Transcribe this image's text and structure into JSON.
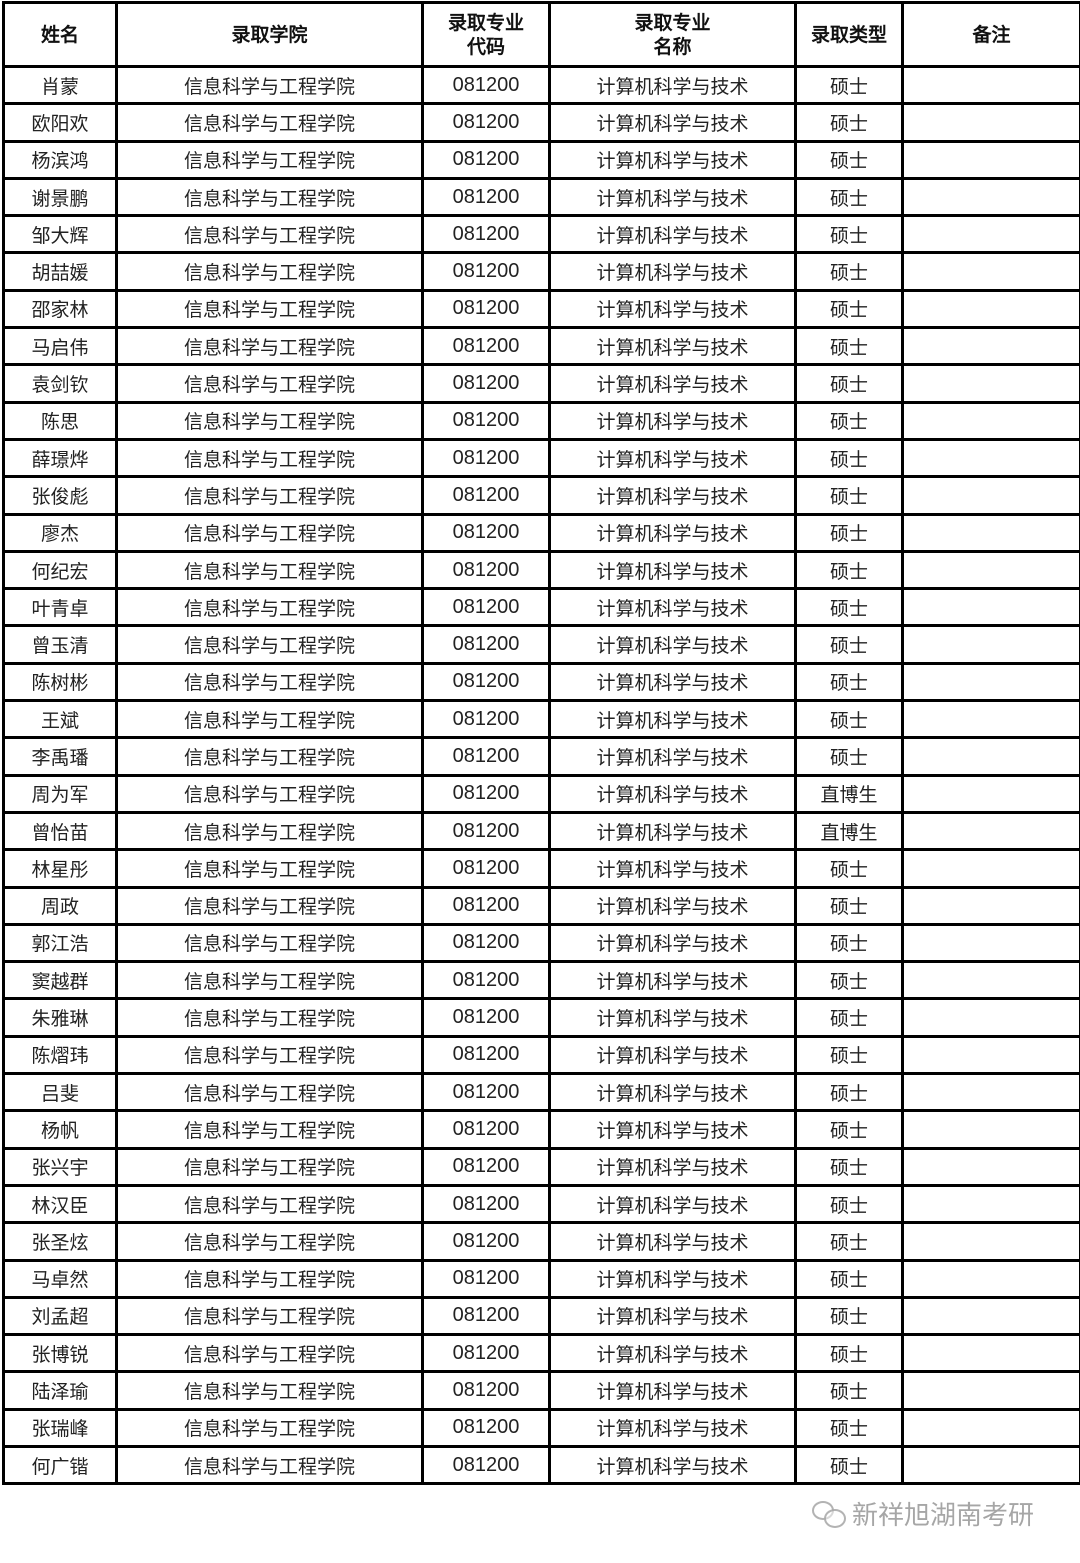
{
  "headers": [
    "姓名",
    "录取学院",
    "录取专业\n代码",
    "录取专业\n名称",
    "录取类型",
    "备注"
  ],
  "rows": [
    [
      "肖蒙",
      "信息科学与工程学院",
      "081200",
      "计算机科学与技术",
      "硕士",
      ""
    ],
    [
      "欧阳欢",
      "信息科学与工程学院",
      "081200",
      "计算机科学与技术",
      "硕士",
      ""
    ],
    [
      "杨滨鸿",
      "信息科学与工程学院",
      "081200",
      "计算机科学与技术",
      "硕士",
      ""
    ],
    [
      "谢景鹏",
      "信息科学与工程学院",
      "081200",
      "计算机科学与技术",
      "硕士",
      ""
    ],
    [
      "邹大辉",
      "信息科学与工程学院",
      "081200",
      "计算机科学与技术",
      "硕士",
      ""
    ],
    [
      "胡喆媛",
      "信息科学与工程学院",
      "081200",
      "计算机科学与技术",
      "硕士",
      ""
    ],
    [
      "邵家林",
      "信息科学与工程学院",
      "081200",
      "计算机科学与技术",
      "硕士",
      ""
    ],
    [
      "马启伟",
      "信息科学与工程学院",
      "081200",
      "计算机科学与技术",
      "硕士",
      ""
    ],
    [
      "袁剑钦",
      "信息科学与工程学院",
      "081200",
      "计算机科学与技术",
      "硕士",
      ""
    ],
    [
      "陈思",
      "信息科学与工程学院",
      "081200",
      "计算机科学与技术",
      "硕士",
      ""
    ],
    [
      "薛璟烨",
      "信息科学与工程学院",
      "081200",
      "计算机科学与技术",
      "硕士",
      ""
    ],
    [
      "张俊彪",
      "信息科学与工程学院",
      "081200",
      "计算机科学与技术",
      "硕士",
      ""
    ],
    [
      "廖杰",
      "信息科学与工程学院",
      "081200",
      "计算机科学与技术",
      "硕士",
      ""
    ],
    [
      "何纪宏",
      "信息科学与工程学院",
      "081200",
      "计算机科学与技术",
      "硕士",
      ""
    ],
    [
      "叶青卓",
      "信息科学与工程学院",
      "081200",
      "计算机科学与技术",
      "硕士",
      ""
    ],
    [
      "曾玉清",
      "信息科学与工程学院",
      "081200",
      "计算机科学与技术",
      "硕士",
      ""
    ],
    [
      "陈树彬",
      "信息科学与工程学院",
      "081200",
      "计算机科学与技术",
      "硕士",
      ""
    ],
    [
      "王斌",
      "信息科学与工程学院",
      "081200",
      "计算机科学与技术",
      "硕士",
      ""
    ],
    [
      "李禹璠",
      "信息科学与工程学院",
      "081200",
      "计算机科学与技术",
      "硕士",
      ""
    ],
    [
      "周为军",
      "信息科学与工程学院",
      "081200",
      "计算机科学与技术",
      "直博生",
      ""
    ],
    [
      "曾怡苗",
      "信息科学与工程学院",
      "081200",
      "计算机科学与技术",
      "直博生",
      ""
    ],
    [
      "林星彤",
      "信息科学与工程学院",
      "081200",
      "计算机科学与技术",
      "硕士",
      ""
    ],
    [
      "周政",
      "信息科学与工程学院",
      "081200",
      "计算机科学与技术",
      "硕士",
      ""
    ],
    [
      "郭江浩",
      "信息科学与工程学院",
      "081200",
      "计算机科学与技术",
      "硕士",
      ""
    ],
    [
      "窦越群",
      "信息科学与工程学院",
      "081200",
      "计算机科学与技术",
      "硕士",
      ""
    ],
    [
      "朱雅琳",
      "信息科学与工程学院",
      "081200",
      "计算机科学与技术",
      "硕士",
      ""
    ],
    [
      "陈熠玮",
      "信息科学与工程学院",
      "081200",
      "计算机科学与技术",
      "硕士",
      ""
    ],
    [
      "吕斐",
      "信息科学与工程学院",
      "081200",
      "计算机科学与技术",
      "硕士",
      ""
    ],
    [
      "杨帆",
      "信息科学与工程学院",
      "081200",
      "计算机科学与技术",
      "硕士",
      ""
    ],
    [
      "张兴宇",
      "信息科学与工程学院",
      "081200",
      "计算机科学与技术",
      "硕士",
      ""
    ],
    [
      "林汉臣",
      "信息科学与工程学院",
      "081200",
      "计算机科学与技术",
      "硕士",
      ""
    ],
    [
      "张圣炫",
      "信息科学与工程学院",
      "081200",
      "计算机科学与技术",
      "硕士",
      ""
    ],
    [
      "马卓然",
      "信息科学与工程学院",
      "081200",
      "计算机科学与技术",
      "硕士",
      ""
    ],
    [
      "刘孟超",
      "信息科学与工程学院",
      "081200",
      "计算机科学与技术",
      "硕士",
      ""
    ],
    [
      "张博锐",
      "信息科学与工程学院",
      "081200",
      "计算机科学与技术",
      "硕士",
      ""
    ],
    [
      "陆泽瑜",
      "信息科学与工程学院",
      "081200",
      "计算机科学与技术",
      "硕士",
      ""
    ],
    [
      "张瑞峰",
      "信息科学与工程学院",
      "081200",
      "计算机科学与技术",
      "硕士",
      ""
    ],
    [
      "何广锴",
      "信息科学与工程学院",
      "081200",
      "计算机科学与技术",
      "硕士",
      ""
    ]
  ],
  "watermark": "新祥旭湖南考研"
}
